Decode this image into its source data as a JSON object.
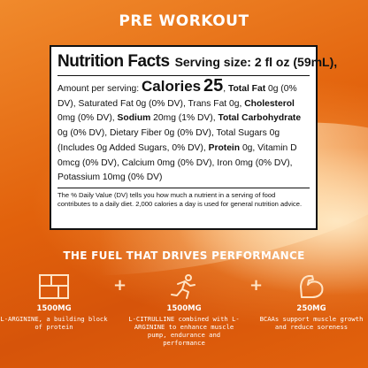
{
  "header": {
    "title": "PRE WORKOUT"
  },
  "label": {
    "title": "Nutrition Facts",
    "serving_size": "Serving size: 2 fl oz (59mL),",
    "amount_per_serving": "Amount per serving:",
    "calories_label": "Calories",
    "calories_value": "25",
    "lines": [
      {
        "name": "Total Fat",
        "bold": true,
        "value": " 0g (0% DV),"
      },
      {
        "name": "Saturated Fat 0g (0% DV), Trans Fat 0g,",
        "bold": false,
        "value": ""
      },
      {
        "name": "Cholesterol",
        "bold": true,
        "value": " 0mg (0% DV),"
      },
      {
        "name": "Sodium",
        "bold": true,
        "value": " 20mg (1% DV),"
      },
      {
        "name": "Total Carbohydrate",
        "bold": true,
        "value": " 0g (0% DV),"
      },
      {
        "name": "Dietary Fiber 0g (0% DV), Total Sugars 0g (Includes 0g Added Sugars, 0% DV),",
        "bold": false,
        "value": ""
      },
      {
        "name": "Protein",
        "bold": true,
        "value": " 0g, Vitamin D 0mcg (0% DV), Calcium 0mg (0% DV), Iron 0mg (0% DV), Potassium 10mg (0% DV)"
      }
    ],
    "footnote": "The % Daily Value (DV) tells you how much a nutrient in a serving of food contributes to a daily diet. 2,000 calories a day is used for general nutrition advice."
  },
  "tagline": "THE FUEL THAT DRIVES PERFORMANCE",
  "benefits": [
    {
      "icon": "molecule-icon",
      "amount": "1500MG",
      "description": "L-ARGININE, a building block of protein"
    },
    {
      "icon": "runner-icon",
      "amount": "1500MG",
      "description": "L-CITRULLINE combined with L-ARGININE to enhance muscle pump, endurance and performance"
    },
    {
      "icon": "flexed-arm-icon",
      "amount": "250MG",
      "description": "BCAAs support muscle growth and reduce soreness"
    }
  ],
  "colors": {
    "accent": "#ffe3c4",
    "background": "#e2620c"
  }
}
